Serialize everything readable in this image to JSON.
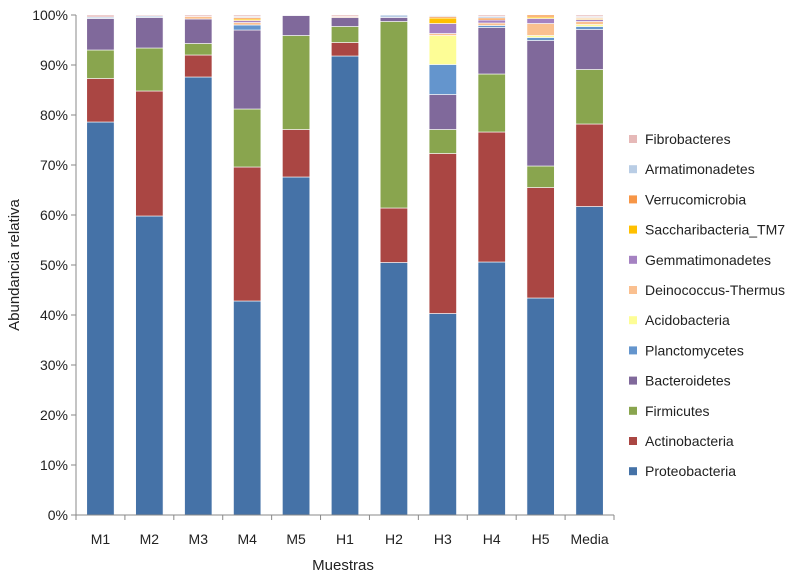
{
  "chart_data": {
    "type": "bar",
    "stacked": true,
    "title": "",
    "xlabel": "Muestras",
    "ylabel": "Abundancia relativa",
    "ylim": [
      0,
      100
    ],
    "yticks": [
      0,
      10,
      20,
      30,
      40,
      50,
      60,
      70,
      80,
      90,
      100
    ],
    "ytick_suffix": "%",
    "grid": false,
    "legend_position": "right",
    "categories": [
      "M1",
      "M2",
      "M3",
      "M4",
      "M5",
      "H1",
      "H2",
      "H3",
      "H4",
      "H5",
      "Media"
    ],
    "series": [
      {
        "name": "Proteobacteria",
        "color": "#4572A7",
        "values": [
          78.6,
          59.8,
          87.6,
          42.8,
          67.6,
          91.8,
          50.5,
          40.3,
          50.6,
          43.4,
          61.7
        ]
      },
      {
        "name": "Actinobacteria",
        "color": "#AA4643",
        "values": [
          8.7,
          25.0,
          4.4,
          26.8,
          9.5,
          2.7,
          10.9,
          32.0,
          26.0,
          22.1,
          16.5
        ]
      },
      {
        "name": "Firmicutes",
        "color": "#89A54E",
        "values": [
          5.7,
          8.6,
          2.3,
          11.6,
          18.8,
          3.2,
          37.3,
          4.8,
          11.6,
          4.3,
          10.9
        ]
      },
      {
        "name": "Bacteroidetes",
        "color": "#80699B",
        "values": [
          6.3,
          6.1,
          4.9,
          15.8,
          4.0,
          1.8,
          0.8,
          7.0,
          9.3,
          25.1,
          8.0
        ]
      },
      {
        "name": "Planctomycetes",
        "color": "#6495CD",
        "values": [
          0,
          0,
          0,
          1.0,
          0,
          0,
          0,
          6.0,
          0.4,
          0.6,
          0.6
        ]
      },
      {
        "name": "Acidobacteria",
        "color": "#FDFD96",
        "values": [
          0,
          0,
          0,
          0,
          0,
          0,
          0,
          5.8,
          0,
          0.4,
          0.4
        ]
      },
      {
        "name": "Deinococcus-Thermus",
        "color": "#FAC090",
        "values": [
          0,
          0,
          0.5,
          0.5,
          0,
          0.2,
          0,
          0.4,
          0.5,
          2.4,
          0.6
        ]
      },
      {
        "name": "Gemmatimonadetes",
        "color": "#A582C2",
        "values": [
          0,
          0,
          0,
          0.4,
          0,
          0,
          0,
          2.0,
          0.6,
          1.0,
          0.4
        ]
      },
      {
        "name": "Saccharibacteria_TM7",
        "color": "#FFC000",
        "values": [
          0,
          0,
          0,
          0.3,
          0,
          0,
          0,
          1.1,
          0,
          0.3,
          0.2
        ]
      },
      {
        "name": "Verrucomicrobia",
        "color": "#F79646",
        "values": [
          0,
          0,
          0,
          0.3,
          0,
          0,
          0,
          0.3,
          0.4,
          0.4,
          0.2
        ]
      },
      {
        "name": "Armatimonadetes",
        "color": "#B9CDE5",
        "values": [
          0.3,
          0.3,
          0,
          0.2,
          0,
          0,
          0.5,
          0.2,
          0.3,
          0,
          0.2
        ]
      },
      {
        "name": "Fibrobacteres",
        "color": "#E6B9B8",
        "values": [
          0.4,
          0.2,
          0.3,
          0.3,
          0.1,
          0.3,
          0,
          0.1,
          0.3,
          0,
          0.3
        ]
      }
    ],
    "legend_order": [
      "Fibrobacteres",
      "Armatimonadetes",
      "Verrucomicrobia",
      "Saccharibacteria_TM7",
      "Gemmatimonadetes",
      "Deinococcus-Thermus",
      "Acidobacteria",
      "Planctomycetes",
      "Bacteroidetes",
      "Firmicutes",
      "Actinobacteria",
      "Proteobacteria"
    ]
  }
}
